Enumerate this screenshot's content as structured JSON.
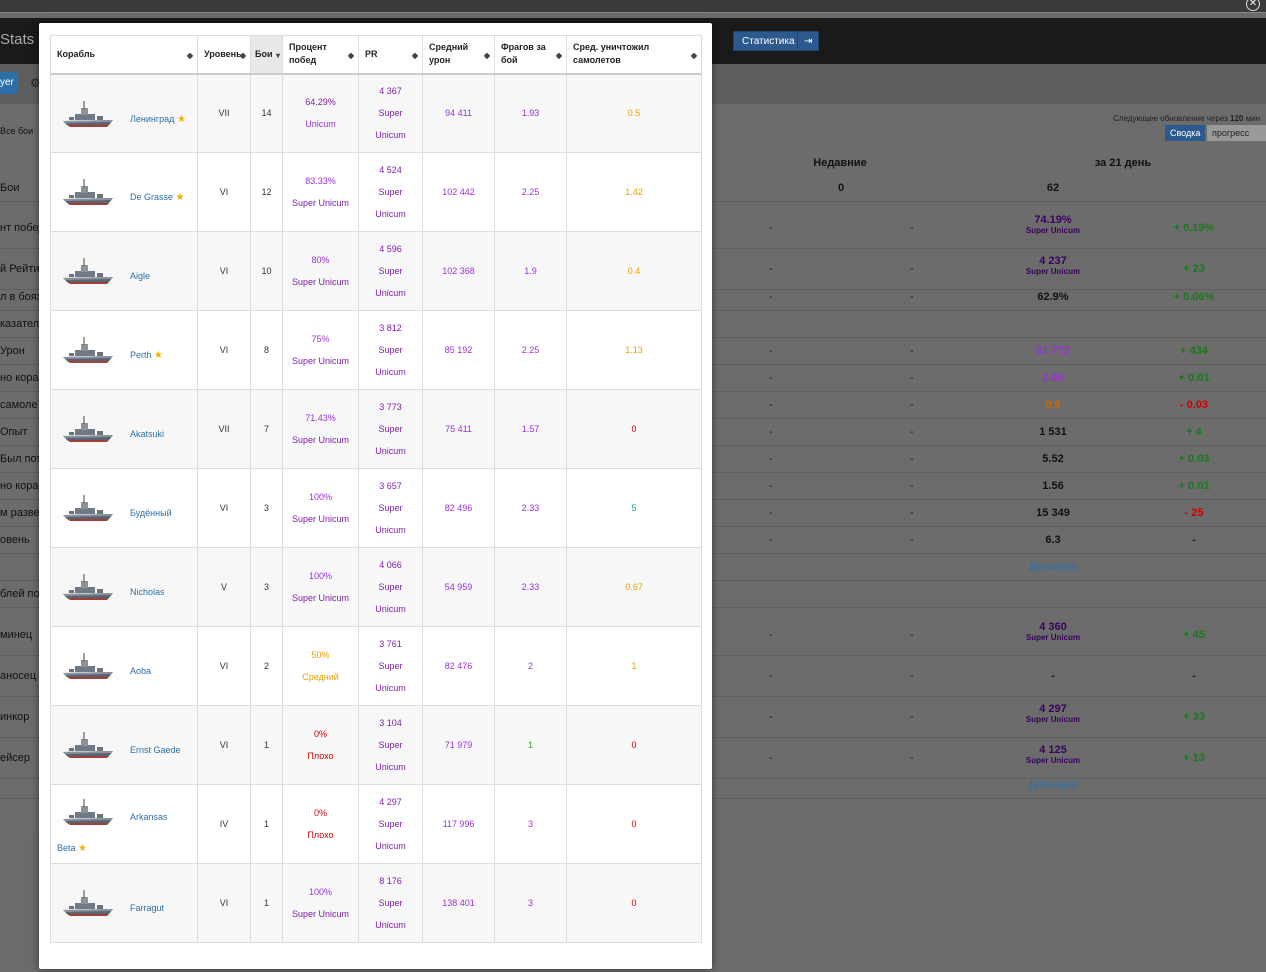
{
  "background": {
    "brand": "Stats &",
    "nav_stats": "Статистика",
    "nav_logout_icon": "logout-icon",
    "tab_player": "yer",
    "update_note_prefix": "Следующее обновление через",
    "update_minutes": "120",
    "update_suffix": "мин",
    "summary_btn": "Сводка",
    "progress_btn": "прогресс",
    "filter_all": "Все бои",
    "col_recent": "Недавние",
    "col_21": "за 21 день",
    "rows": [
      {
        "label": "Бои",
        "recent": "0",
        "d21": "62",
        "sub": "",
        "delta": ""
      },
      {
        "label": "нт побед",
        "d1": "-",
        "d2": "-",
        "d21": "74.19%",
        "sub": "Super Unicum",
        "delta": "+ 0.19%"
      },
      {
        "label": "й Рейтин",
        "d1": "-",
        "d2": "-",
        "d21": "4 237",
        "sub": "Super Unicum",
        "delta": "+ 23"
      },
      {
        "label": "л в боях",
        "d1": "-",
        "d2": "-",
        "d21": "62.9%",
        "sub": "",
        "delta": "+ 0.06%"
      },
      {
        "label": "казатели",
        "d21": "",
        "sub": "",
        "delta": ""
      },
      {
        "label": "Урон",
        "d1": "-",
        "d2": "-",
        "d21": "91 772",
        "sub": "",
        "delta": "+ 434"
      },
      {
        "label": "но кораб",
        "d1": "-",
        "d2": "-",
        "d21": "2.05",
        "sub": "",
        "delta": "+ 0.01"
      },
      {
        "label": "самоле",
        "d1": "-",
        "d2": "-",
        "d21": "0.9",
        "sub": "",
        "delta": "- 0.03"
      },
      {
        "label": "Опыт",
        "d1": "-",
        "d2": "-",
        "d21": "1 531",
        "sub": "",
        "delta": "+ 4"
      },
      {
        "label": "Был пот",
        "d1": "-",
        "d2": "-",
        "d21": "5.52",
        "sub": "",
        "delta": "+ 0.03"
      },
      {
        "label": "но кораб",
        "d1": "-",
        "d2": "-",
        "d21": "1.56",
        "sub": "",
        "delta": "+ 0.01"
      },
      {
        "label": "м развед",
        "d1": "-",
        "d2": "-",
        "d21": "15 349",
        "sub": "",
        "delta": "- 25"
      },
      {
        "label": "овень",
        "d1": "-",
        "d2": "-",
        "d21": "6.3",
        "sub": "",
        "delta": "-"
      },
      {
        "label": "",
        "d21": "Детально",
        "sub": "",
        "delta": ""
      },
      {
        "label": "блей по",
        "d21": "",
        "sub": "",
        "delta": ""
      },
      {
        "label": "минец",
        "d1": "-",
        "d2": "-",
        "d21": "4 360",
        "sub": "Super Unicum",
        "delta": "+ 45"
      },
      {
        "label": "аносец",
        "d1": "-",
        "d2": "-",
        "d21": "-",
        "sub": "",
        "delta": "-"
      },
      {
        "label": "инкор",
        "d1": "-",
        "d2": "-",
        "d21": "4 297",
        "sub": "Super Unicum",
        "delta": "+ 33"
      },
      {
        "label": "ейсер",
        "d1": "-",
        "d2": "-",
        "d21": "4 125",
        "sub": "Super Unicum",
        "delta": "+ 13"
      },
      {
        "label": "",
        "d21": "Детально",
        "sub": "",
        "delta": ""
      }
    ]
  },
  "table": {
    "headers": [
      "Корабль",
      "Уровень",
      "Бои",
      "Процент побед",
      "PR",
      "Средний урон",
      "Фрагов за бой",
      "Сред. уничтожил самолетов"
    ],
    "rows": [
      {
        "ship": "Ленинград",
        "star": true,
        "tier": "VII",
        "battles": "14",
        "wr": "64.29%",
        "wr_label": "Unicum",
        "pr": "4 367",
        "pr_l1": "Super",
        "pr_l2": "Unicum",
        "dmg": "94 411",
        "frags": "1.93",
        "planes": "0.5"
      },
      {
        "ship": "De Grasse",
        "star": true,
        "tier": "VI",
        "battles": "12",
        "wr": "83.33%",
        "wr_label": "Super Unicum",
        "pr": "4 524",
        "pr_l1": "Super",
        "pr_l2": "Unicum",
        "dmg": "102 442",
        "frags": "2.25",
        "planes": "1.42"
      },
      {
        "ship": "Aigle",
        "star": false,
        "tier": "VI",
        "battles": "10",
        "wr": "80%",
        "wr_label": "Super Unicum",
        "pr": "4 596",
        "pr_l1": "Super",
        "pr_l2": "Unicum",
        "dmg": "102 368",
        "frags": "1.9",
        "planes": "0.4"
      },
      {
        "ship": "Perth",
        "star": true,
        "tier": "VI",
        "battles": "8",
        "wr": "75%",
        "wr_label": "Super Unicum",
        "pr": "3 812",
        "pr_l1": "Super",
        "pr_l2": "Unicum",
        "dmg": "85 192",
        "frags": "2.25",
        "planes": "1.13"
      },
      {
        "ship": "Akatsuki",
        "star": false,
        "tier": "VII",
        "battles": "7",
        "wr": "71.43%",
        "wr_label": "Super Unicum",
        "pr": "3 773",
        "pr_l1": "Super",
        "pr_l2": "Unicum",
        "dmg": "75 411",
        "frags": "1.57",
        "planes": "0"
      },
      {
        "ship": "Будённый",
        "star": false,
        "tier": "VI",
        "battles": "3",
        "wr": "100%",
        "wr_label": "Super Unicum",
        "pr": "3 657",
        "pr_l1": "Super",
        "pr_l2": "Unicum",
        "dmg": "82 496",
        "frags": "2.33",
        "planes": "5"
      },
      {
        "ship": "Nicholas",
        "star": false,
        "tier": "V",
        "battles": "3",
        "wr": "100%",
        "wr_label": "Super Unicum",
        "pr": "4 066",
        "pr_l1": "Super",
        "pr_l2": "Unicum",
        "dmg": "54 959",
        "frags": "2.33",
        "planes": "0.67"
      },
      {
        "ship": "Aoba",
        "star": false,
        "tier": "VI",
        "battles": "2",
        "wr": "50%",
        "wr_label": "Средний",
        "pr": "3 761",
        "pr_l1": "Super",
        "pr_l2": "Unicum",
        "dmg": "82 476",
        "frags": "2",
        "planes": "1"
      },
      {
        "ship": "Ernst Gaede",
        "star": false,
        "tier": "VI",
        "battles": "1",
        "wr": "0%",
        "wr_label": "Плохо",
        "pr": "3 104",
        "pr_l1": "Super",
        "pr_l2": "Unicum",
        "dmg": "71 979",
        "frags": "1",
        "planes": "0"
      },
      {
        "ship": "Arkansas",
        "ship2": "Beta",
        "star": true,
        "tier": "IV",
        "battles": "1",
        "wr": "0%",
        "wr_label": "Плохо",
        "pr": "4 297",
        "pr_l1": "Super",
        "pr_l2": "Unicum",
        "dmg": "117 996",
        "frags": "3",
        "planes": "0"
      },
      {
        "ship": "Farragut",
        "star": false,
        "tier": "VI",
        "battles": "1",
        "wr": "100%",
        "wr_label": "Super Unicum",
        "pr": "8 176",
        "pr_l1": "Super",
        "pr_l2": "Unicum",
        "dmg": "138 401",
        "frags": "3",
        "planes": "0"
      }
    ]
  },
  "colors": {
    "purple": "#9b30d9",
    "dark_purple": "#7f1fa8",
    "orange": "#f0a000",
    "red": "#d00000",
    "green": "#3aa020",
    "teal": "#1fa0a0",
    "link": "#2c6fa8"
  }
}
